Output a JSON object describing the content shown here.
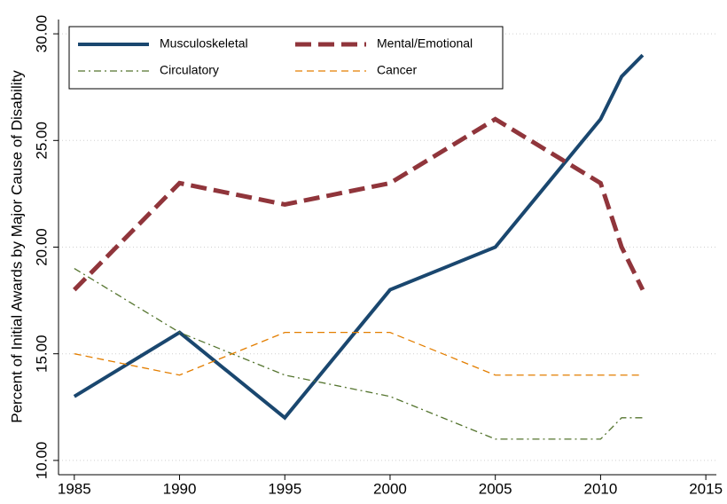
{
  "chart_data": {
    "type": "line",
    "y_label": "Percent of Initial Awards by Major Cause of Disability",
    "x": [
      1985,
      1990,
      1995,
      2000,
      2005,
      2010,
      2011,
      2012
    ],
    "series": [
      {
        "name": "Musculoskeletal",
        "color": "#1a476f",
        "dash": "none",
        "width": 4,
        "values": [
          13,
          16,
          12,
          18,
          20,
          26,
          28,
          29
        ]
      },
      {
        "name": "Mental/Emotional",
        "color": "#90353b",
        "dash": "18 8",
        "width": 5,
        "values": [
          18,
          23,
          22,
          23,
          26,
          23,
          20,
          18
        ]
      },
      {
        "name": "Circulatory",
        "color": "#55752f",
        "dash": "8 4 2 4",
        "width": 1.3,
        "values": [
          19,
          16,
          14,
          13,
          11,
          11,
          12,
          12
        ]
      },
      {
        "name": "Cancer",
        "color": "#e37e00",
        "dash": "8 5",
        "width": 1.3,
        "values": [
          15,
          14,
          16,
          16,
          14,
          14,
          14,
          14
        ]
      }
    ],
    "xlim": [
      1984.25,
      2015.5
    ],
    "xticks": [
      1985,
      1990,
      1995,
      2000,
      2005,
      2010,
      2015
    ],
    "ylim": [
      9.33,
      30.67
    ],
    "yticks": [
      {
        "value": 10,
        "label": "10.00"
      },
      {
        "value": 15,
        "label": "15.00"
      },
      {
        "value": 20,
        "label": "20.00"
      },
      {
        "value": 25,
        "label": "25.00"
      },
      {
        "value": 30,
        "label": "30.00"
      }
    ],
    "grid": true,
    "legend": "top-left"
  }
}
